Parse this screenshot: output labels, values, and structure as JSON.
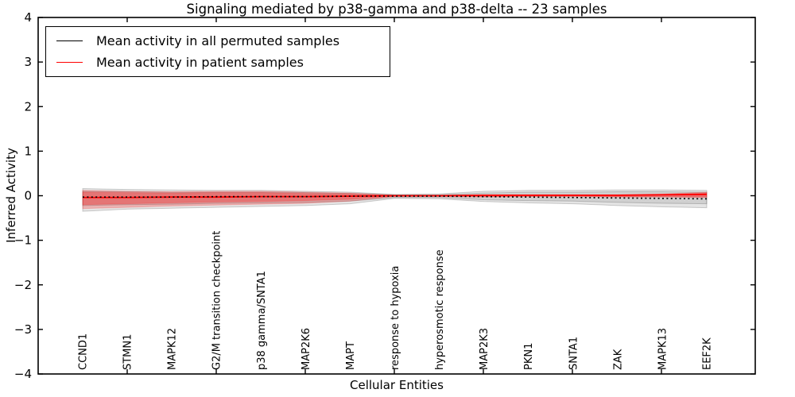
{
  "figure": {
    "title": "Signaling mediated by p38-gamma and p38-delta -- 23 samples",
    "xlabel": "Cellular Entities",
    "ylabel": "Inferred Activity"
  },
  "chart_data": {
    "type": "line",
    "title": "Signaling mediated by p38-gamma and p38-delta -- 23 samples",
    "xlabel": "Cellular Entities",
    "ylabel": "Inferred Activity",
    "ylim": [
      -4,
      4
    ],
    "yticks": [
      -4,
      -3,
      -2,
      -1,
      0,
      1,
      2,
      3,
      4
    ],
    "grid": false,
    "legend_position": "upper left",
    "categories": [
      "CCND1",
      "STMN1",
      "MAPK12",
      "G2/M transition checkpoint",
      "p38 gamma/SNTA1",
      "MAP2K6",
      "MAPT",
      "response to hypoxia",
      "hyperosmotic response",
      "MAP2K3",
      "PKN1",
      "SNTA1",
      "ZAK",
      "MAPK13",
      "EEF2K"
    ],
    "series": [
      {
        "key": "permuted",
        "name": "Mean activity in all permuted samples",
        "color": "#000000",
        "line_style": "dotted",
        "dash": "2,3.4",
        "line_width": 1.7,
        "draw_order": 2,
        "band_color": "#000000",
        "band_alpha_outer": 0.1,
        "band_alpha_inner": 0.09,
        "values": [
          -0.03,
          -0.03,
          -0.03,
          -0.02,
          -0.02,
          -0.02,
          -0.01,
          -0.01,
          -0.01,
          -0.02,
          -0.03,
          -0.04,
          -0.05,
          -0.06,
          -0.07
        ],
        "band_outer_upper": [
          0.16,
          0.14,
          0.13,
          0.12,
          0.12,
          0.1,
          0.08,
          0.03,
          0.04,
          0.1,
          0.12,
          0.12,
          0.13,
          0.13,
          0.12
        ],
        "band_outer_lower": [
          -0.35,
          -0.3,
          -0.28,
          -0.26,
          -0.24,
          -0.22,
          -0.18,
          -0.06,
          -0.07,
          -0.13,
          -0.16,
          -0.18,
          -0.22,
          -0.25,
          -0.27
        ],
        "band_inner_upper": [
          0.1,
          0.09,
          0.08,
          0.08,
          0.08,
          0.07,
          0.05,
          0.02,
          0.02,
          0.06,
          0.08,
          0.08,
          0.09,
          0.09,
          0.08
        ],
        "band_inner_lower": [
          -0.22,
          -0.2,
          -0.19,
          -0.17,
          -0.16,
          -0.15,
          -0.12,
          -0.04,
          -0.04,
          -0.09,
          -0.11,
          -0.12,
          -0.15,
          -0.17,
          -0.18
        ]
      },
      {
        "key": "patient",
        "name": "Mean activity in patient samples",
        "color": "#ff0000",
        "line_style": "solid",
        "dash": "",
        "line_width": 1.8,
        "draw_order": 1,
        "band_color": "#ff0000",
        "band_alpha_outer": 0.22,
        "band_alpha_inner": 0.28,
        "values": [
          -0.04,
          -0.04,
          -0.03,
          -0.03,
          -0.02,
          -0.02,
          -0.01,
          0.0,
          0.0,
          0.01,
          0.01,
          0.01,
          0.01,
          0.02,
          0.03
        ],
        "band_outer_upper": [
          0.12,
          0.1,
          0.09,
          0.1,
          0.1,
          0.08,
          0.06,
          0.01,
          0.01,
          0.02,
          0.02,
          0.02,
          0.02,
          0.04,
          0.08
        ],
        "band_outer_lower": [
          -0.29,
          -0.26,
          -0.23,
          -0.21,
          -0.19,
          -0.17,
          -0.12,
          -0.02,
          -0.02,
          -0.03,
          -0.02,
          -0.02,
          -0.03,
          -0.03,
          -0.04
        ],
        "band_inner_upper": [
          0.08,
          0.07,
          0.06,
          0.07,
          0.07,
          0.05,
          0.04,
          0.01,
          0.01,
          0.01,
          0.01,
          0.01,
          0.01,
          0.03,
          0.06
        ],
        "band_inner_lower": [
          -0.2,
          -0.18,
          -0.16,
          -0.14,
          -0.13,
          -0.11,
          -0.08,
          -0.01,
          -0.01,
          -0.02,
          -0.01,
          -0.01,
          -0.02,
          -0.02,
          -0.03
        ]
      }
    ]
  }
}
